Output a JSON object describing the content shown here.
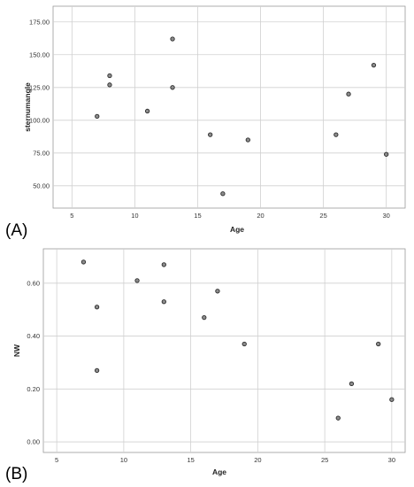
{
  "chart_data": [
    {
      "type": "scatter",
      "panel_label": "(A)",
      "xlabel": "Age",
      "ylabel": "sternumangle",
      "xlim": [
        3.5,
        31.5
      ],
      "ylim": [
        33,
        187
      ],
      "x_ticks": [
        5,
        10,
        15,
        20,
        25,
        30
      ],
      "x_tick_labels": [
        "5",
        "10",
        "15",
        "20",
        "25",
        "30"
      ],
      "y_ticks": [
        50,
        75,
        100,
        125,
        150,
        175
      ],
      "y_tick_labels": [
        "50.00",
        "75.00",
        "100.00",
        "125.00",
        "150.00",
        "175.00"
      ],
      "grid": true,
      "points": [
        {
          "x": 7,
          "y": 103
        },
        {
          "x": 8,
          "y": 134
        },
        {
          "x": 8,
          "y": 127
        },
        {
          "x": 11,
          "y": 107
        },
        {
          "x": 13,
          "y": 162
        },
        {
          "x": 13,
          "y": 125
        },
        {
          "x": 16,
          "y": 89
        },
        {
          "x": 17,
          "y": 44
        },
        {
          "x": 19,
          "y": 85
        },
        {
          "x": 26,
          "y": 89
        },
        {
          "x": 27,
          "y": 120
        },
        {
          "x": 29,
          "y": 142
        },
        {
          "x": 30,
          "y": 74
        }
      ]
    },
    {
      "type": "scatter",
      "panel_label": "(B)",
      "xlabel": "Age",
      "ylabel": "NW",
      "xlim": [
        4,
        31
      ],
      "ylim": [
        -0.04,
        0.73
      ],
      "x_ticks": [
        5,
        10,
        15,
        20,
        25,
        30
      ],
      "x_tick_labels": [
        "5",
        "10",
        "15",
        "20",
        "25",
        "30"
      ],
      "y_ticks": [
        0.0,
        0.2,
        0.4,
        0.6
      ],
      "y_tick_labels": [
        "0.00",
        "0.20",
        "0.40",
        "0.60"
      ],
      "grid": true,
      "points": [
        {
          "x": 7,
          "y": 0.68
        },
        {
          "x": 8,
          "y": 0.51
        },
        {
          "x": 8,
          "y": 0.27
        },
        {
          "x": 11,
          "y": 0.61
        },
        {
          "x": 13,
          "y": 0.67
        },
        {
          "x": 13,
          "y": 0.53
        },
        {
          "x": 16,
          "y": 0.47
        },
        {
          "x": 17,
          "y": 0.57
        },
        {
          "x": 19,
          "y": 0.37
        },
        {
          "x": 26,
          "y": 0.09
        },
        {
          "x": 27,
          "y": 0.22
        },
        {
          "x": 29,
          "y": 0.37
        },
        {
          "x": 30,
          "y": 0.16
        }
      ]
    }
  ]
}
